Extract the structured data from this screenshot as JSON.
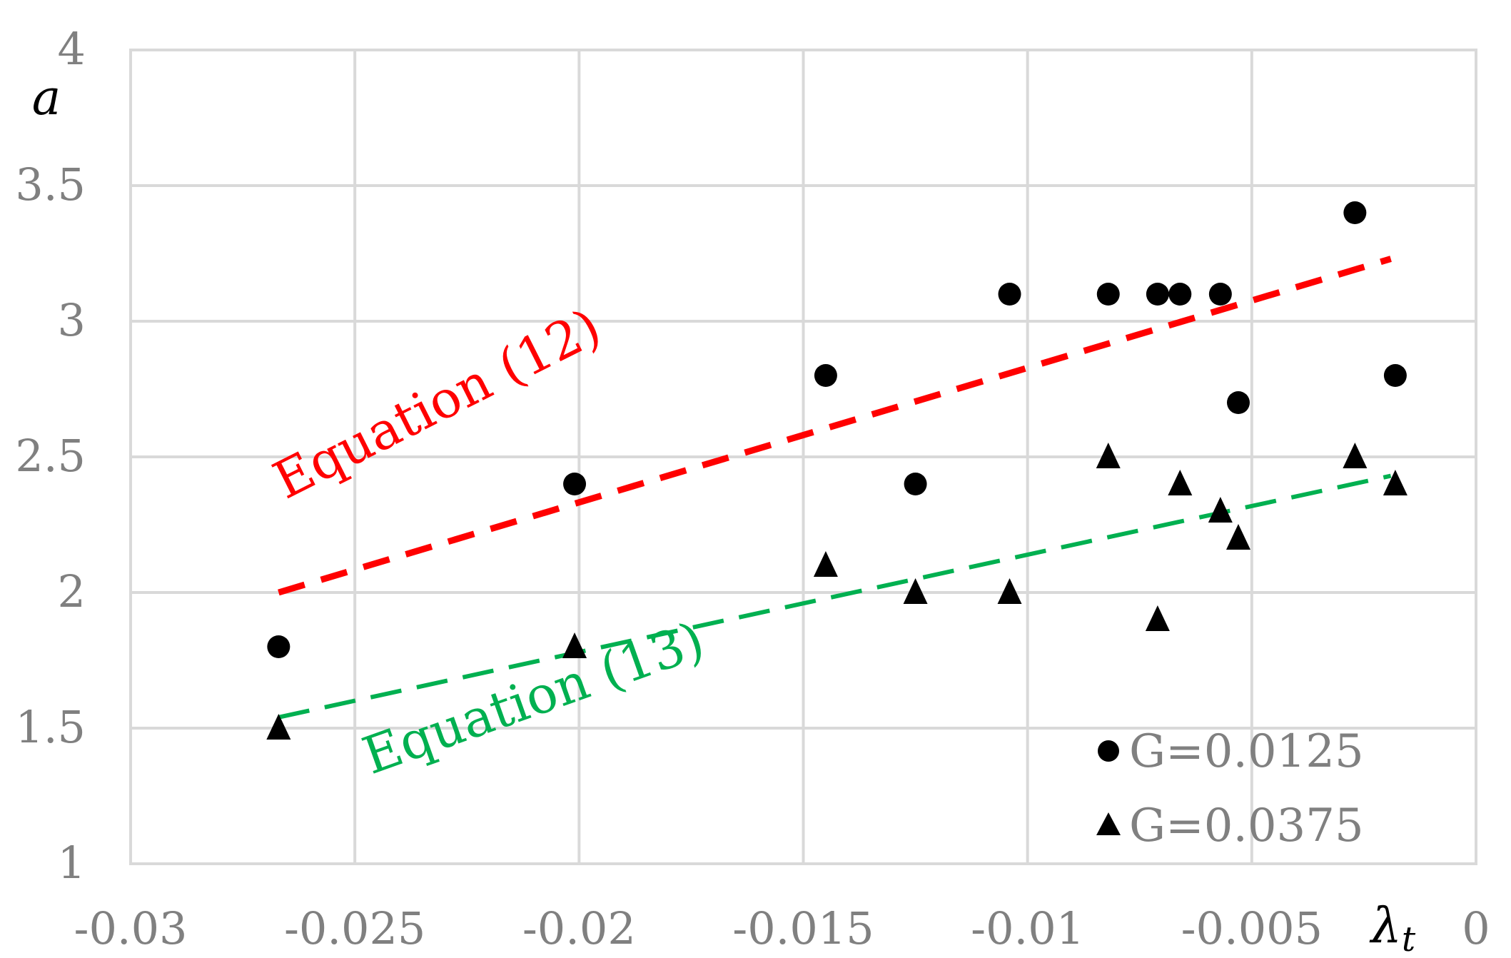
{
  "chart_data": {
    "type": "scatter",
    "xlabel": "λ",
    "xlabel_sub": "t",
    "ylabel": "a",
    "xlim": [
      -0.03,
      0
    ],
    "ylim": [
      1,
      4
    ],
    "x_ticks": [
      -0.03,
      -0.025,
      -0.02,
      -0.015,
      -0.01,
      -0.005,
      0
    ],
    "x_tick_labels": [
      "-0.03",
      "-0.025",
      "-0.02",
      "-0.015",
      "-0.01",
      "-0.005",
      "0"
    ],
    "y_ticks": [
      1,
      1.5,
      2,
      2.5,
      3,
      3.5,
      4
    ],
    "y_tick_labels": [
      "1",
      "1.5",
      "2",
      "2.5",
      "3",
      "3.5",
      "4"
    ],
    "grid": true,
    "legend_position": "bottom-right",
    "series": [
      {
        "name": "G=0.0125",
        "marker": "circle",
        "color": "#000000",
        "points": [
          {
            "x": -0.0267,
            "y": 1.8
          },
          {
            "x": -0.0201,
            "y": 2.4
          },
          {
            "x": -0.0145,
            "y": 2.8
          },
          {
            "x": -0.0125,
            "y": 2.4
          },
          {
            "x": -0.0104,
            "y": 3.1
          },
          {
            "x": -0.0082,
            "y": 3.1
          },
          {
            "x": -0.0071,
            "y": 3.1
          },
          {
            "x": -0.0066,
            "y": 3.1
          },
          {
            "x": -0.0057,
            "y": 3.1
          },
          {
            "x": -0.0053,
            "y": 2.7
          },
          {
            "x": -0.0027,
            "y": 3.4
          },
          {
            "x": -0.0018,
            "y": 2.8
          }
        ]
      },
      {
        "name": "G=0.0375",
        "marker": "triangle",
        "color": "#000000",
        "points": [
          {
            "x": -0.0267,
            "y": 1.5
          },
          {
            "x": -0.0201,
            "y": 1.8
          },
          {
            "x": -0.0145,
            "y": 2.1
          },
          {
            "x": -0.0125,
            "y": 2.0
          },
          {
            "x": -0.0104,
            "y": 2.0
          },
          {
            "x": -0.0082,
            "y": 2.5
          },
          {
            "x": -0.0071,
            "y": 1.9
          },
          {
            "x": -0.0066,
            "y": 2.4
          },
          {
            "x": -0.0057,
            "y": 2.3
          },
          {
            "x": -0.0053,
            "y": 2.2
          },
          {
            "x": -0.0027,
            "y": 2.5
          },
          {
            "x": -0.0018,
            "y": 2.4
          }
        ]
      }
    ],
    "fit_lines": [
      {
        "label": "Equation (12)",
        "color": "#ff0000",
        "x": [
          -0.0267,
          -0.0019
        ],
        "y": [
          2.0,
          3.23
        ]
      },
      {
        "label": "Equation (13)",
        "color": "#00b050",
        "x": [
          -0.0267,
          -0.0019
        ],
        "y": [
          1.54,
          2.43
        ]
      }
    ]
  }
}
